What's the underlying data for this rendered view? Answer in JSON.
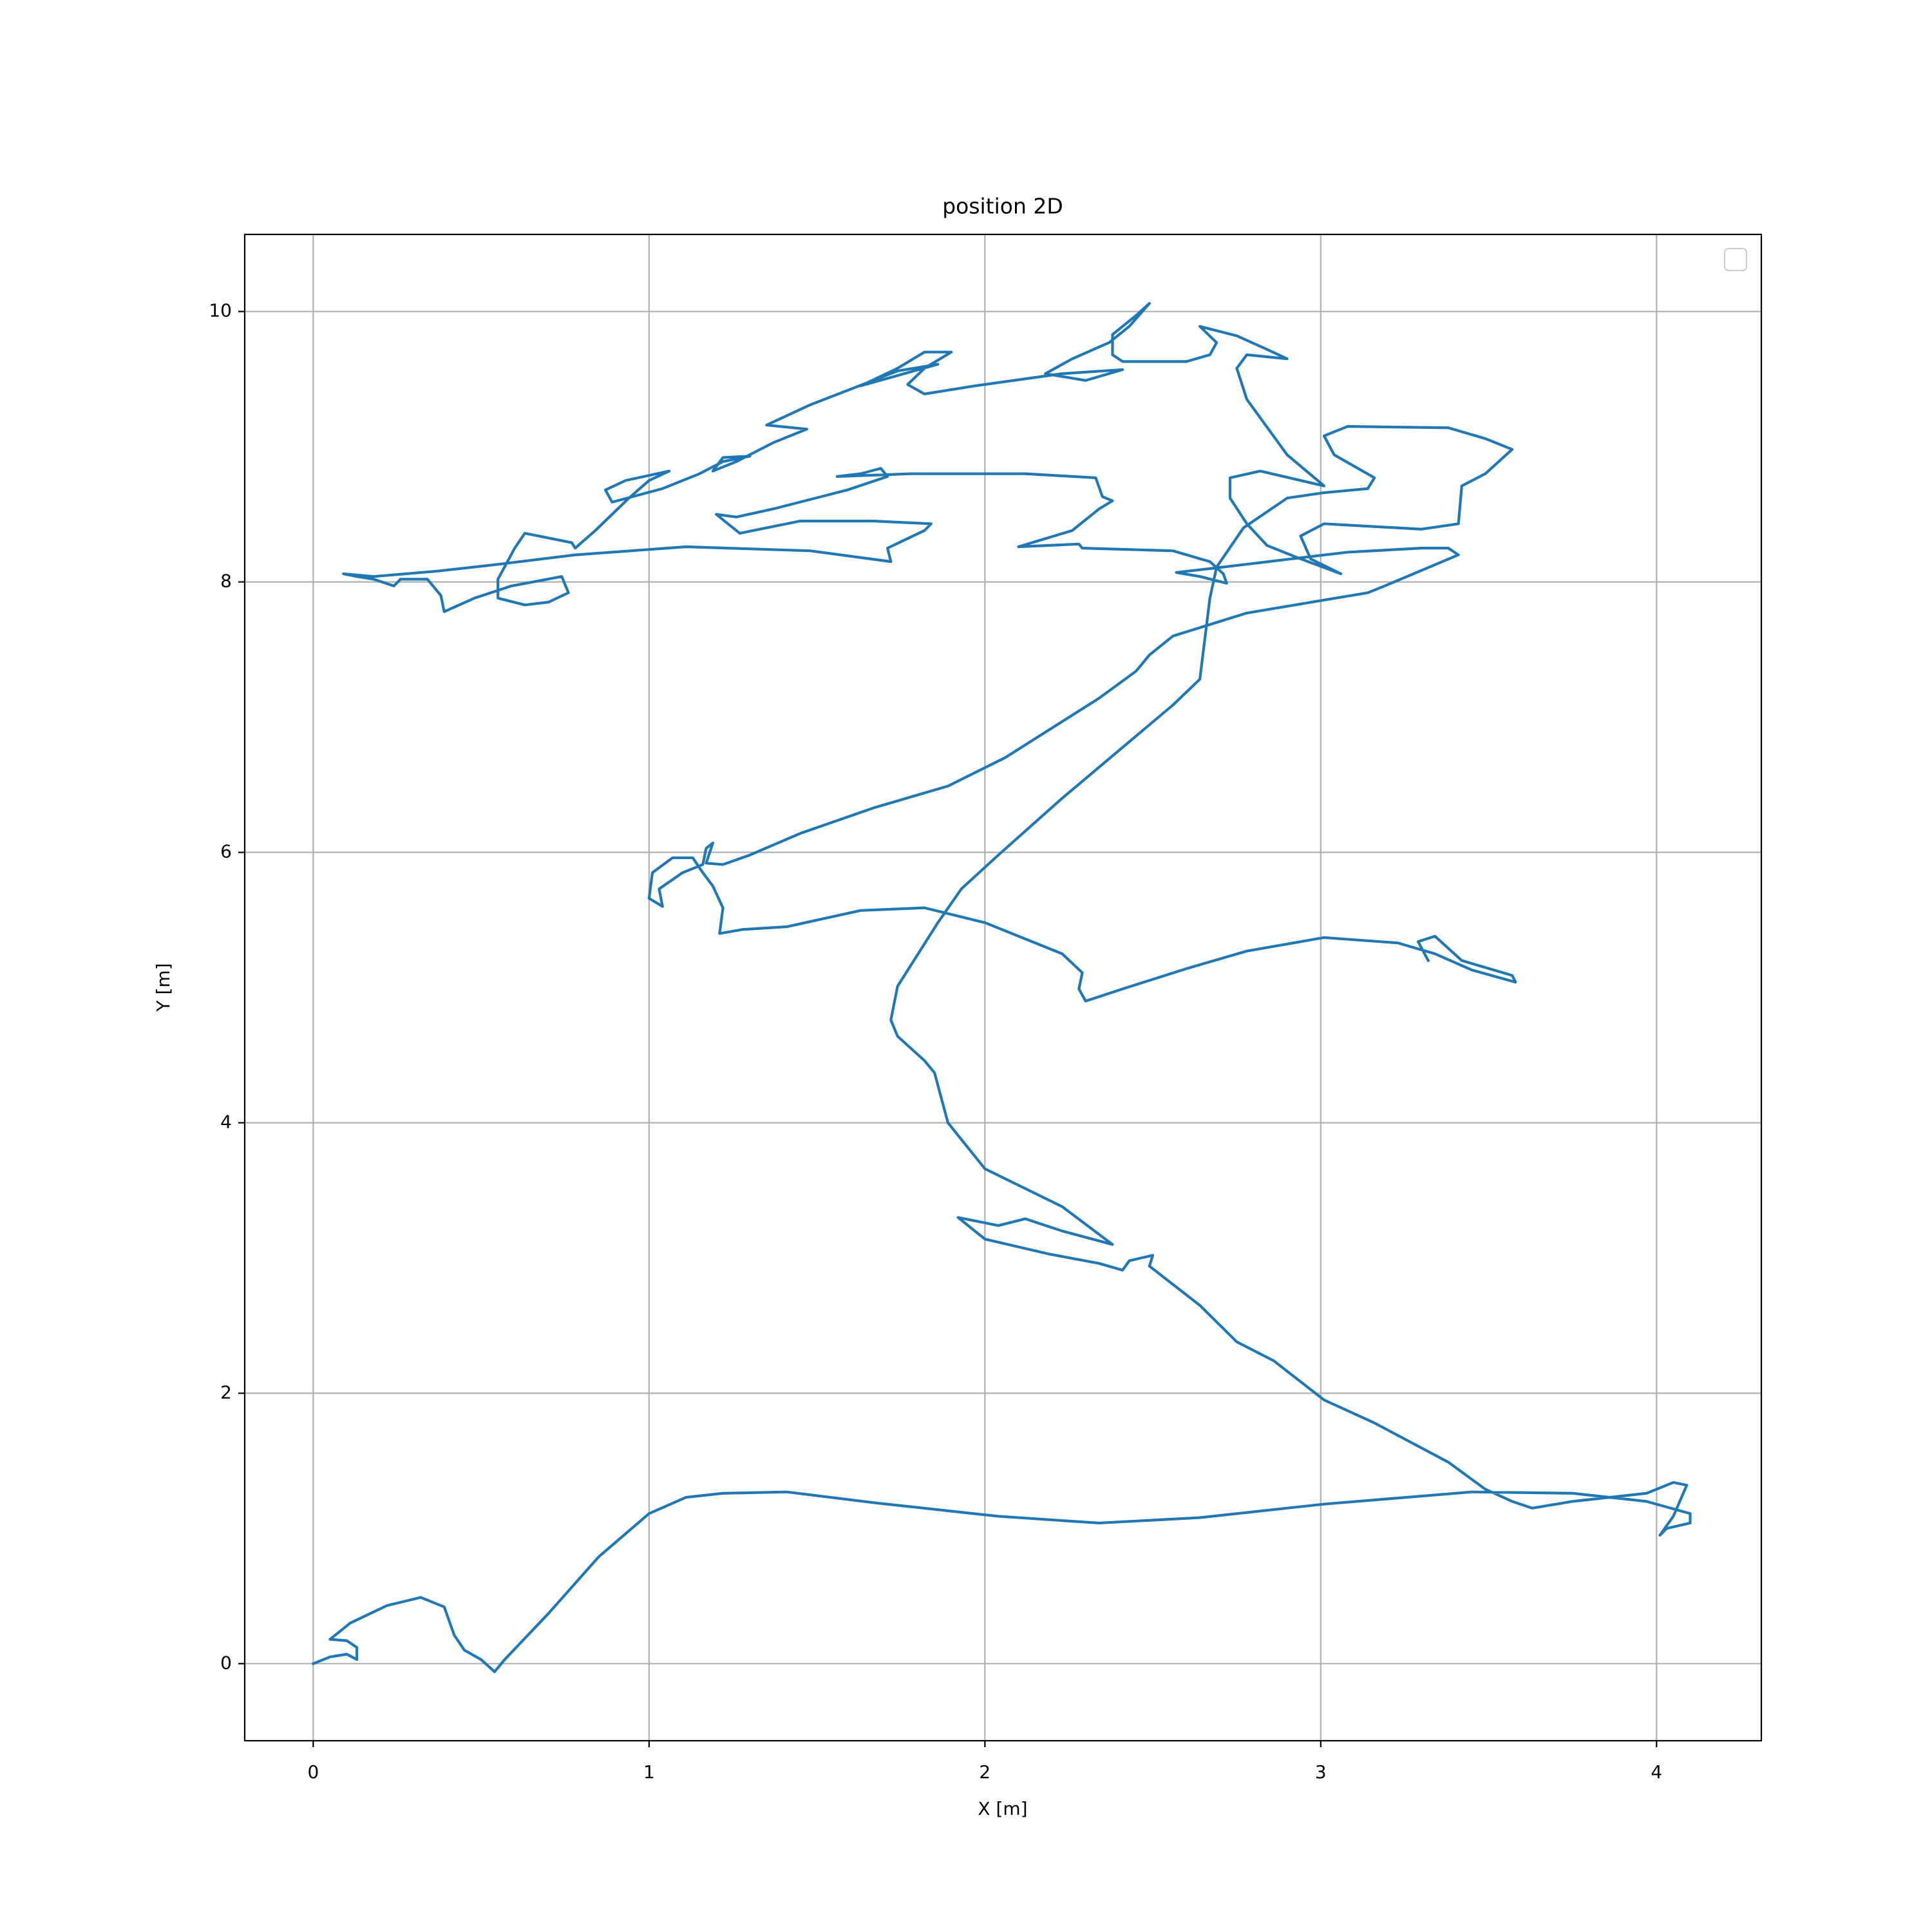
{
  "chart_data": {
    "type": "line",
    "title": "position 2D",
    "x_label": "X [m]",
    "y_label": "Y [m]",
    "color": "#1f77b4",
    "grid": true,
    "xlim": [
      -0.204,
      4.312
    ],
    "ylim": [
      -0.57,
      10.57
    ],
    "xticks": [
      0,
      1,
      2,
      3,
      4
    ],
    "yticks": [
      0,
      2,
      4,
      6,
      8,
      10
    ],
    "x": [
      0,
      0.05,
      0.1,
      0.13,
      0.13,
      0.1,
      0.05,
      0.11,
      0.22,
      0.32,
      0.39,
      0.42,
      0.45,
      0.5,
      0.54,
      0.57,
      0.7,
      0.85,
      1.0,
      1.11,
      1.22,
      1.41,
      1.67,
      2.04,
      2.34,
      2.64,
      3.01,
      3.45,
      3.75,
      3.97,
      4.1,
      4.1,
      4.03,
      4.01,
      4.05,
      4.09,
      4.05,
      3.97,
      3.75,
      3.63,
      3.57,
      3.49,
      3.38,
      3.16,
      3.01,
      2.86,
      2.75,
      2.64,
      2.49,
      2.5,
      2.43,
      2.41,
      2.34,
      2.19,
      2.0,
      1.92,
      2.04,
      2.12,
      2.23,
      2.38,
      2.23,
      2.0,
      1.89,
      1.85,
      1.82,
      1.74,
      1.72,
      1.74,
      1.86,
      1.93,
      2.04,
      2.23,
      2.45,
      2.56,
      2.64,
      2.67,
      2.69,
      2.77,
      2.9,
      3.01,
      3.14,
      3.16,
      3.04,
      3.01,
      3.08,
      3.38,
      3.49,
      3.57,
      3.49,
      3.42,
      3.41,
      3.3,
      3.01,
      2.94,
      2.97,
      3.06,
      2.93,
      2.84,
      2.78,
      2.73,
      2.73,
      2.82,
      3.01,
      2.9,
      2.78,
      2.75,
      2.78,
      2.9,
      2.84,
      2.75,
      2.64,
      2.69,
      2.67,
      2.6,
      2.41,
      2.38,
      2.38,
      2.45,
      2.49,
      2.43,
      2.37,
      2.26,
      2.18,
      2.3,
      2.41,
      2.23,
      1.97,
      1.82,
      1.77,
      1.82,
      1.9,
      1.82,
      1.74,
      1.63,
      1.86,
      1.74,
      1.48,
      1.35,
      1.47,
      1.37,
      1.26,
      1.19,
      1.22,
      1.3,
      1.22,
      1.15,
      1.04,
      0.89,
      0.87,
      0.93,
      1.06,
      1.0,
      0.94,
      0.84,
      0.78,
      0.77,
      0.67,
      0.63,
      0.6,
      0.55,
      0.55,
      0.63,
      0.7,
      0.76,
      0.74,
      0.59,
      0.48,
      0.39,
      0.38,
      0.34,
      0.26,
      0.24,
      0.18,
      0.13,
      0.09,
      0.18,
      0.37,
      0.55,
      0.78,
      1.11,
      1.48,
      1.72,
      1.71,
      1.82,
      1.84,
      1.67,
      1.45,
      1.27,
      1.2,
      1.26,
      1.37,
      1.59,
      1.71,
      1.69,
      1.63,
      1.56,
      1.78,
      2.12,
      2.33,
      2.35,
      2.38,
      2.34,
      2.26,
      2.1,
      2.28,
      2.29,
      2.56,
      2.67,
      2.71,
      2.72,
      2.64,
      2.57,
      2.71,
      3.08,
      3.3,
      3.38,
      3.41,
      3.19,
      3.14,
      2.78,
      2.56,
      2.49,
      2.45,
      2.34,
      2.06,
      1.89,
      1.67,
      1.45,
      1.3,
      1.22,
      1.17,
      1.19,
      1.17,
      1.16,
      1.1,
      1.03,
      1.04,
      1.0,
      1.01,
      1.07,
      1.13,
      1.16,
      1.19,
      1.22,
      1.21,
      1.28,
      1.41,
      1.63,
      1.82,
      2.0,
      2.23,
      2.29,
      2.28,
      2.3,
      2.41,
      2.6,
      2.78,
      3.01,
      3.23,
      3.34,
      3.45,
      3.58,
      3.57,
      3.42,
      3.34,
      3.29,
      3.32
    ],
    "values": [
      0,
      0.05,
      0.07,
      0.03,
      0.12,
      0.17,
      0.18,
      0.3,
      0.43,
      0.49,
      0.42,
      0.21,
      0.1,
      0.03,
      -0.06,
      0.03,
      0.37,
      0.79,
      1.11,
      1.23,
      1.26,
      1.27,
      1.19,
      1.09,
      1.04,
      1.08,
      1.18,
      1.27,
      1.26,
      1.2,
      1.11,
      1.04,
      1.0,
      0.95,
      1.09,
      1.32,
      1.34,
      1.26,
      1.2,
      1.15,
      1.2,
      1.29,
      1.49,
      1.78,
      1.95,
      2.24,
      2.38,
      2.65,
      2.94,
      3.02,
      2.98,
      2.91,
      2.96,
      3.03,
      3.14,
      3.3,
      3.24,
      3.29,
      3.2,
      3.1,
      3.38,
      3.66,
      4.0,
      4.37,
      4.46,
      4.64,
      4.76,
      5.01,
      5.48,
      5.73,
      5.98,
      6.4,
      6.86,
      7.09,
      7.28,
      7.88,
      8.11,
      8.4,
      8.62,
      8.66,
      8.69,
      8.77,
      8.94,
      9.08,
      9.15,
      9.14,
      9.06,
      8.98,
      8.8,
      8.71,
      8.43,
      8.39,
      8.43,
      8.34,
      8.17,
      8.06,
      8.18,
      8.27,
      8.43,
      8.62,
      8.77,
      8.82,
      8.71,
      8.94,
      9.35,
      9.58,
      9.68,
      9.65,
      9.72,
      9.82,
      9.89,
      9.77,
      9.68,
      9.63,
      9.63,
      9.68,
      9.83,
      9.97,
      10.06,
      9.89,
      9.77,
      9.65,
      9.54,
      9.49,
      9.57,
      9.54,
      9.45,
      9.39,
      9.46,
      9.58,
      9.7,
      9.7,
      9.58,
      9.45,
      9.61,
      9.56,
      9.31,
      9.16,
      9.13,
      9.03,
      8.89,
      8.82,
      8.92,
      8.93,
      8.89,
      8.8,
      8.69,
      8.59,
      8.68,
      8.75,
      8.82,
      8.75,
      8.62,
      8.38,
      8.25,
      8.29,
      8.34,
      8.36,
      8.25,
      8.02,
      7.88,
      7.83,
      7.85,
      7.92,
      8.04,
      7.97,
      7.88,
      7.78,
      7.9,
      8.02,
      8.02,
      7.97,
      8.02,
      8.04,
      8.06,
      8.04,
      8.08,
      8.13,
      8.2,
      8.26,
      8.23,
      8.15,
      8.25,
      8.38,
      8.43,
      8.45,
      8.45,
      8.36,
      8.5,
      8.48,
      8.54,
      8.68,
      8.78,
      8.84,
      8.8,
      8.78,
      8.8,
      8.8,
      8.77,
      8.63,
      8.6,
      8.54,
      8.38,
      8.26,
      8.28,
      8.25,
      8.23,
      8.15,
      8.06,
      7.99,
      8.04,
      8.07,
      8.11,
      8.22,
      8.25,
      8.25,
      8.2,
      7.97,
      7.92,
      7.77,
      7.6,
      7.46,
      7.34,
      7.14,
      6.7,
      6.49,
      6.33,
      6.14,
      5.98,
      5.91,
      5.92,
      6.07,
      6.03,
      5.91,
      5.85,
      5.73,
      5.6,
      5.66,
      5.85,
      5.96,
      5.96,
      5.85,
      5.75,
      5.59,
      5.4,
      5.43,
      5.45,
      5.57,
      5.59,
      5.48,
      5.25,
      5.11,
      4.99,
      4.9,
      4.99,
      5.14,
      5.27,
      5.37,
      5.33,
      5.25,
      5.13,
      5.04,
      5.09,
      5.2,
      5.38,
      5.34,
      5.2
    ]
  }
}
